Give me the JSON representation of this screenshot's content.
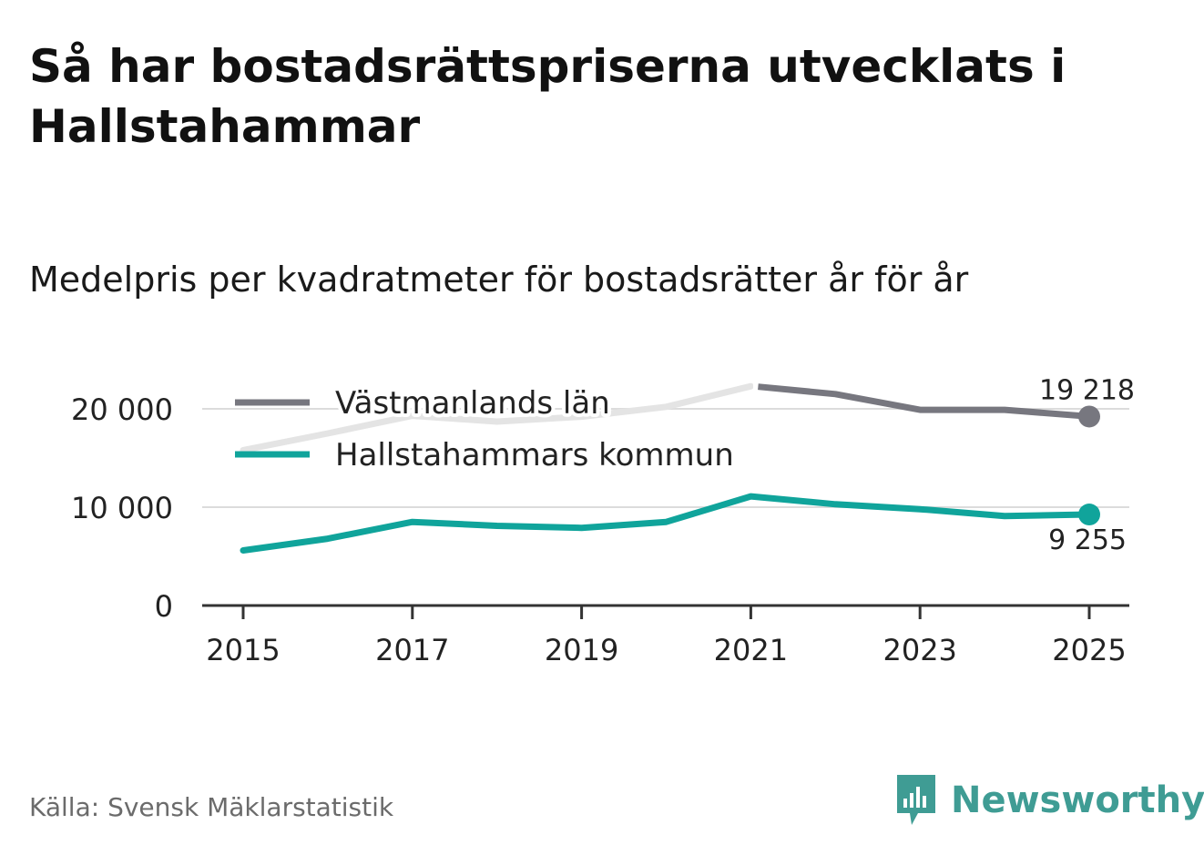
{
  "title": "Så har bostadsrättspriserna utvecklats i Hallstahammar",
  "subtitle": "Medelpris per kvadratmeter för bostadsrätter år för år",
  "source": "Källa: Svensk Mäklarstatistik",
  "brand": {
    "name": "Newsworthy",
    "icon": "newsworthy-logo-icon",
    "color": "#3f9c94"
  },
  "chart_data": {
    "type": "line",
    "title": "Medelpris per kvadratmeter för bostadsrätter år för år",
    "xlabel": "",
    "ylabel": "",
    "x": [
      2015,
      2016,
      2017,
      2018,
      2019,
      2020,
      2021,
      2022,
      2023,
      2024,
      2025
    ],
    "xlim": [
      2015,
      2025
    ],
    "ylim": [
      0,
      22000
    ],
    "x_ticks": [
      {
        "value": 2015,
        "label": "2015"
      },
      {
        "value": 2017,
        "label": "2017"
      },
      {
        "value": 2019,
        "label": "2019"
      },
      {
        "value": 2021,
        "label": "2021"
      },
      {
        "value": 2023,
        "label": "2023"
      },
      {
        "value": 2025,
        "label": "2025"
      }
    ],
    "y_ticks": [
      {
        "value": 0,
        "label": "0"
      },
      {
        "value": 10000,
        "label": "10 000"
      },
      {
        "value": 20000,
        "label": "20 000"
      }
    ],
    "grid": true,
    "legend_position": "top-left",
    "series": [
      {
        "name": "Västmanlands län",
        "color": "#77777f",
        "faded_color": "#e4e4e4",
        "values": [
          15800,
          17500,
          19300,
          18700,
          19200,
          20200,
          22300,
          21500,
          19900,
          19900,
          19218
        ],
        "end_label": "19 218"
      },
      {
        "name": "Hallstahammars kommun",
        "color": "#10a49b",
        "values": [
          5600,
          6800,
          8500,
          8100,
          7900,
          8500,
          11100,
          10300,
          9800,
          9100,
          9255
        ],
        "end_label": "9 255"
      }
    ]
  }
}
